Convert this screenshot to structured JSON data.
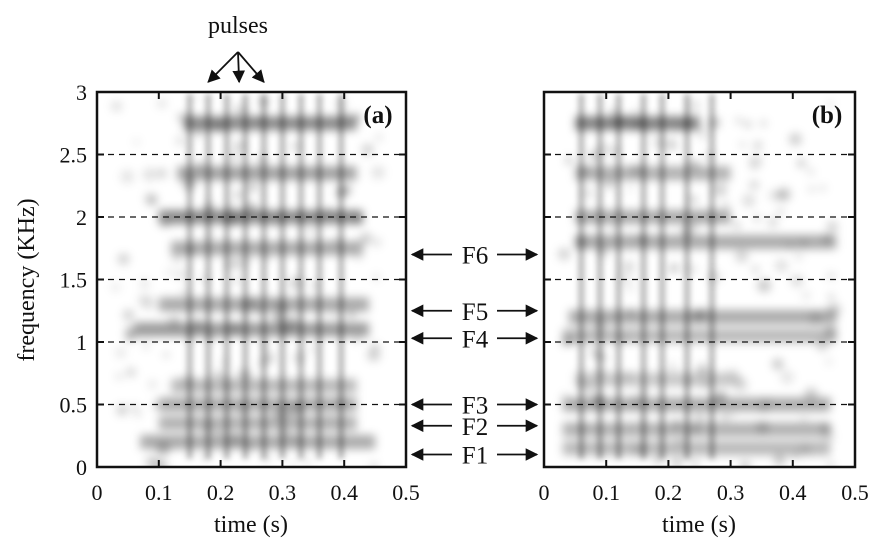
{
  "chart_data": [
    {
      "type": "heatmap",
      "panel_label": "(a)",
      "xlabel": "time (s)",
      "ylabel": "frequency (KHz)",
      "xlim": [
        0,
        0.5
      ],
      "ylim": [
        0,
        3
      ],
      "x_ticks": [
        "0",
        "0.1",
        "0.2",
        "0.3",
        "0.4",
        "0.5"
      ],
      "y_ticks": [
        "0",
        "0.5",
        "1",
        "1.5",
        "2",
        "2.5",
        "3"
      ],
      "y_tick_values": [
        0,
        0.5,
        1,
        1.5,
        2,
        2.5,
        3
      ],
      "grid": "dashed horizontal lines at 0.5, 1, 1.5, 2, 2.5 KHz",
      "pulses_x": [
        0.15,
        0.18,
        0.21,
        0.24,
        0.27,
        0.3,
        0.33,
        0.36,
        0.395
      ],
      "dark_bands": [
        {
          "y": 0.2,
          "x_start": 0.07,
          "x_end": 0.45,
          "intensity": 0.55
        },
        {
          "y": 0.35,
          "x_start": 0.1,
          "x_end": 0.42,
          "intensity": 0.5
        },
        {
          "y": 0.5,
          "x_start": 0.1,
          "x_end": 0.42,
          "intensity": 0.55
        },
        {
          "y": 0.65,
          "x_start": 0.12,
          "x_end": 0.42,
          "intensity": 0.45
        },
        {
          "y": 1.1,
          "x_start": 0.06,
          "x_end": 0.44,
          "intensity": 0.65
        },
        {
          "y": 1.3,
          "x_start": 0.1,
          "x_end": 0.44,
          "intensity": 0.55
        },
        {
          "y": 1.75,
          "x_start": 0.12,
          "x_end": 0.43,
          "intensity": 0.55
        },
        {
          "y": 2.0,
          "x_start": 0.1,
          "x_end": 0.43,
          "intensity": 0.75
        },
        {
          "y": 2.35,
          "x_start": 0.13,
          "x_end": 0.42,
          "intensity": 0.6
        },
        {
          "y": 2.75,
          "x_start": 0.14,
          "x_end": 0.42,
          "intensity": 0.75
        }
      ]
    },
    {
      "type": "heatmap",
      "panel_label": "(b)",
      "xlabel": "time (s)",
      "xlim": [
        0,
        0.5
      ],
      "ylim": [
        0,
        3
      ],
      "x_ticks": [
        "0",
        "0.1",
        "0.2",
        "0.3",
        "0.4",
        "0.5"
      ],
      "grid": "dashed horizontal lines at 0.5, 1, 1.5, 2, 2.5 KHz",
      "pulses_x": [
        0.06,
        0.09,
        0.12,
        0.16,
        0.19,
        0.23,
        0.27
      ],
      "dark_bands": [
        {
          "y": 0.15,
          "x_start": 0.03,
          "x_end": 0.46,
          "intensity": 0.45
        },
        {
          "y": 0.3,
          "x_start": 0.03,
          "x_end": 0.46,
          "intensity": 0.5
        },
        {
          "y": 0.5,
          "x_start": 0.03,
          "x_end": 0.46,
          "intensity": 0.55
        },
        {
          "y": 0.7,
          "x_start": 0.05,
          "x_end": 0.3,
          "intensity": 0.35
        },
        {
          "y": 1.05,
          "x_start": 0.03,
          "x_end": 0.47,
          "intensity": 0.45
        },
        {
          "y": 1.2,
          "x_start": 0.04,
          "x_end": 0.47,
          "intensity": 0.55
        },
        {
          "y": 1.8,
          "x_start": 0.05,
          "x_end": 0.47,
          "intensity": 0.55
        },
        {
          "y": 2.0,
          "x_start": 0.05,
          "x_end": 0.3,
          "intensity": 0.55
        },
        {
          "y": 2.35,
          "x_start": 0.05,
          "x_end": 0.3,
          "intensity": 0.5
        },
        {
          "y": 2.75,
          "x_start": 0.05,
          "x_end": 0.25,
          "intensity": 0.8
        }
      ]
    }
  ],
  "annotations": {
    "pulses_label": "pulses",
    "pulse_arrow_targets_x": [
      0.18,
      0.23,
      0.27
    ],
    "formants": [
      {
        "label": "F6",
        "freq": 1.7
      },
      {
        "label": "F5",
        "freq": 1.25
      },
      {
        "label": "F4",
        "freq": 1.03
      },
      {
        "label": "F3",
        "freq": 0.5
      },
      {
        "label": "F2",
        "freq": 0.33
      },
      {
        "label": "F1",
        "freq": 0.1
      }
    ]
  },
  "colors": {
    "ink": "#111111",
    "spectrogram": "#000000",
    "background": "#ffffff"
  }
}
